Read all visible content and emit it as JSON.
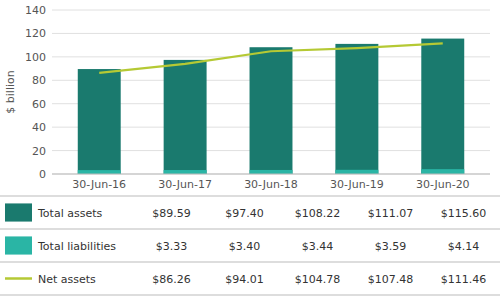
{
  "chart_data": {
    "type": "bar",
    "categories": [
      "30-Jun-16",
      "30-Jun-17",
      "30-Jun-18",
      "30-Jun-19",
      "30-Jun-20"
    ],
    "series": [
      {
        "name": "Total assets",
        "type": "bar",
        "color": "#1a7a6e",
        "values": [
          89.59,
          97.4,
          108.22,
          111.07,
          115.6
        ],
        "value_labels": [
          "$89.59",
          "$97.40",
          "$108.22",
          "$111.07",
          "$115.60"
        ]
      },
      {
        "name": "Total liabilities",
        "type": "bar",
        "color": "#2ab5a5",
        "values": [
          3.33,
          3.4,
          3.44,
          3.59,
          4.14
        ],
        "value_labels": [
          "$3.33",
          "$3.40",
          "$3.44",
          "$3.59",
          "$4.14"
        ]
      },
      {
        "name": "Net assets",
        "type": "line",
        "color": "#b5c934",
        "values": [
          86.26,
          94.01,
          104.78,
          107.48,
          111.46
        ],
        "value_labels": [
          "$86.26",
          "$94.01",
          "$104.78",
          "$107.48",
          "$111.46"
        ]
      }
    ],
    "y_label": "$ billion",
    "ylim": [
      0,
      140
    ],
    "yticks": [
      0,
      20,
      40,
      60,
      80,
      100,
      120,
      140
    ],
    "grid": true,
    "stacked": false,
    "legend": "bottom"
  }
}
